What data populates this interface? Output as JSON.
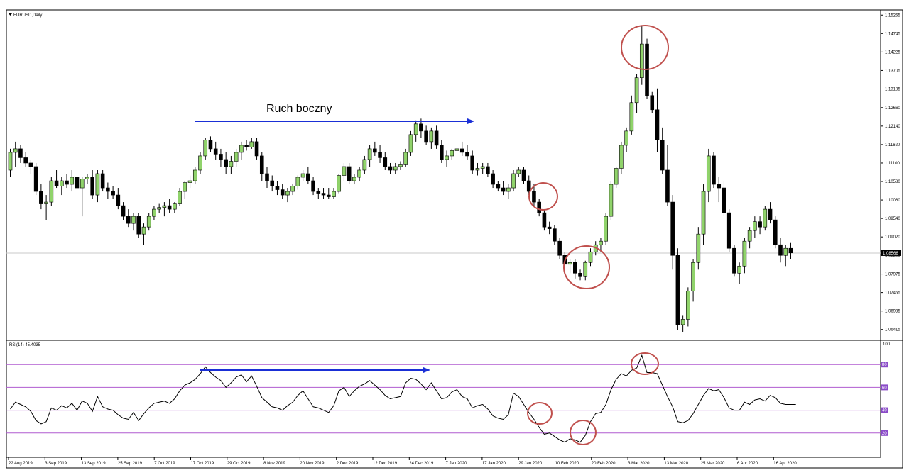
{
  "chart_data": {
    "type": "candlestick",
    "symbol_label": "EURUSD,Daily",
    "price_axis": {
      "ticks": [
        "1.15265",
        "1.14745",
        "1.14225",
        "1.13705",
        "1.13185",
        "1.12660",
        "1.12140",
        "1.11620",
        "1.11100",
        "1.10580",
        "1.10060",
        "1.09540",
        "1.09020",
        "1.08500",
        "1.07975",
        "1.07455",
        "1.06935",
        "1.06415"
      ],
      "range": [
        1.0615,
        1.1537
      ],
      "current_price": 1.08566,
      "current_price_label": "1.08566"
    },
    "date_axis": {
      "labels": [
        "22 Aug 2019",
        "3 Sep 2019",
        "13 Sep 2019",
        "25 Sep 2019",
        "7 Oct 2019",
        "17 Oct 2019",
        "29 Oct 2019",
        "8 Nov 2019",
        "20 Nov 2019",
        "2 Dec 2019",
        "12 Dec 2019",
        "24 Dec 2019",
        "7 Jan 2020",
        "17 Jan 2020",
        "29 Jan 2020",
        "10 Feb 2020",
        "20 Feb 2020",
        "3 Mar 2020",
        "13 Mar 2020",
        "25 Mar 2020",
        "6 Apr 2020",
        "16 Apr 2020"
      ]
    },
    "candles": [
      [
        1.109,
        1.115,
        1.107,
        1.114
      ],
      [
        1.114,
        1.117,
        1.11,
        1.115
      ],
      [
        1.115,
        1.116,
        1.111,
        1.1125
      ],
      [
        1.1125,
        1.114,
        1.11,
        1.111
      ],
      [
        1.111,
        1.112,
        1.108,
        1.11
      ],
      [
        1.11,
        1.111,
        1.102,
        1.103
      ],
      [
        1.103,
        1.105,
        1.098,
        1.0995
      ],
      [
        1.0995,
        1.102,
        1.095,
        1.1
      ],
      [
        1.1,
        1.107,
        1.099,
        1.106
      ],
      [
        1.106,
        1.109,
        1.104,
        1.1045
      ],
      [
        1.1045,
        1.107,
        1.102,
        1.106
      ],
      [
        1.106,
        1.108,
        1.104,
        1.105
      ],
      [
        1.105,
        1.109,
        1.103,
        1.107
      ],
      [
        1.107,
        1.108,
        1.103,
        1.104
      ],
      [
        1.104,
        1.107,
        1.096,
        1.1065
      ],
      [
        1.1065,
        1.108,
        1.105,
        1.107
      ],
      [
        1.107,
        1.109,
        1.101,
        1.102
      ],
      [
        1.102,
        1.109,
        1.1,
        1.108
      ],
      [
        1.108,
        1.109,
        1.103,
        1.104
      ],
      [
        1.104,
        1.1055,
        1.101,
        1.103
      ],
      [
        1.103,
        1.1045,
        1.101,
        1.102
      ],
      [
        1.102,
        1.104,
        1.098,
        1.099
      ],
      [
        1.099,
        1.1,
        1.095,
        1.096
      ],
      [
        1.096,
        1.098,
        1.093,
        1.094
      ],
      [
        1.094,
        1.097,
        1.092,
        1.096
      ],
      [
        1.096,
        1.097,
        1.09,
        1.091
      ],
      [
        1.091,
        1.094,
        1.088,
        1.093
      ],
      [
        1.093,
        1.097,
        1.092,
        1.096
      ],
      [
        1.096,
        1.099,
        1.095,
        1.098
      ],
      [
        1.098,
        1.0995,
        1.097,
        1.0985
      ],
      [
        1.0985,
        1.1,
        1.096,
        1.099
      ],
      [
        1.099,
        1.101,
        1.097,
        1.098
      ],
      [
        1.098,
        1.1,
        1.097,
        1.0995
      ],
      [
        1.0995,
        1.104,
        1.099,
        1.103
      ],
      [
        1.103,
        1.106,
        1.101,
        1.1055
      ],
      [
        1.1055,
        1.1075,
        1.104,
        1.106
      ],
      [
        1.106,
        1.11,
        1.105,
        1.109
      ],
      [
        1.109,
        1.114,
        1.108,
        1.113
      ],
      [
        1.113,
        1.118,
        1.112,
        1.1175
      ],
      [
        1.1175,
        1.1185,
        1.114,
        1.115
      ],
      [
        1.115,
        1.117,
        1.112,
        1.1135
      ],
      [
        1.1135,
        1.115,
        1.11,
        1.112
      ],
      [
        1.112,
        1.114,
        1.108,
        1.11
      ],
      [
        1.11,
        1.113,
        1.108,
        1.1115
      ],
      [
        1.1115,
        1.115,
        1.11,
        1.114
      ],
      [
        1.114,
        1.117,
        1.112,
        1.116
      ],
      [
        1.116,
        1.1175,
        1.1145,
        1.1155
      ],
      [
        1.1155,
        1.118,
        1.115,
        1.117
      ],
      [
        1.117,
        1.118,
        1.112,
        1.113
      ],
      [
        1.113,
        1.114,
        1.106,
        1.108
      ],
      [
        1.108,
        1.11,
        1.104,
        1.106
      ],
      [
        1.106,
        1.1075,
        1.103,
        1.1045
      ],
      [
        1.1045,
        1.106,
        1.102,
        1.1035
      ],
      [
        1.1035,
        1.105,
        1.101,
        1.102
      ],
      [
        1.102,
        1.104,
        1.1,
        1.103
      ],
      [
        1.103,
        1.105,
        1.102,
        1.1045
      ],
      [
        1.1045,
        1.1075,
        1.1035,
        1.107
      ],
      [
        1.107,
        1.109,
        1.106,
        1.108
      ],
      [
        1.108,
        1.11,
        1.105,
        1.106
      ],
      [
        1.106,
        1.107,
        1.102,
        1.103
      ],
      [
        1.103,
        1.104,
        1.101,
        1.1025
      ],
      [
        1.1025,
        1.104,
        1.101,
        1.102
      ],
      [
        1.102,
        1.104,
        1.101,
        1.1015
      ],
      [
        1.1015,
        1.104,
        1.101,
        1.103
      ],
      [
        1.103,
        1.108,
        1.1025,
        1.1075
      ],
      [
        1.1075,
        1.111,
        1.106,
        1.11
      ],
      [
        1.11,
        1.111,
        1.105,
        1.106
      ],
      [
        1.106,
        1.108,
        1.105,
        1.107
      ],
      [
        1.107,
        1.11,
        1.106,
        1.109
      ],
      [
        1.109,
        1.113,
        1.108,
        1.112
      ],
      [
        1.112,
        1.116,
        1.11,
        1.115
      ],
      [
        1.115,
        1.117,
        1.113,
        1.114
      ],
      [
        1.114,
        1.116,
        1.111,
        1.1125
      ],
      [
        1.1125,
        1.114,
        1.109,
        1.11
      ],
      [
        1.11,
        1.111,
        1.108,
        1.109
      ],
      [
        1.109,
        1.111,
        1.108,
        1.11
      ],
      [
        1.11,
        1.1115,
        1.109,
        1.1105
      ],
      [
        1.1105,
        1.115,
        1.11,
        1.114
      ],
      [
        1.114,
        1.12,
        1.113,
        1.119
      ],
      [
        1.119,
        1.123,
        1.117,
        1.122
      ],
      [
        1.122,
        1.1235,
        1.118,
        1.12
      ],
      [
        1.12,
        1.1215,
        1.116,
        1.117
      ],
      [
        1.117,
        1.121,
        1.115,
        1.12
      ],
      [
        1.12,
        1.1215,
        1.115,
        1.116
      ],
      [
        1.116,
        1.1175,
        1.111,
        1.112
      ],
      [
        1.112,
        1.1145,
        1.11,
        1.113
      ],
      [
        1.113,
        1.115,
        1.112,
        1.1145
      ],
      [
        1.1145,
        1.1165,
        1.113,
        1.115
      ],
      [
        1.115,
        1.117,
        1.113,
        1.114
      ],
      [
        1.114,
        1.116,
        1.112,
        1.113
      ],
      [
        1.113,
        1.1145,
        1.108,
        1.109
      ],
      [
        1.109,
        1.111,
        1.1075,
        1.1095
      ],
      [
        1.1095,
        1.111,
        1.108,
        1.11
      ],
      [
        1.11,
        1.111,
        1.107,
        1.108
      ],
      [
        1.108,
        1.109,
        1.104,
        1.105
      ],
      [
        1.105,
        1.106,
        1.103,
        1.104
      ],
      [
        1.104,
        1.106,
        1.102,
        1.103
      ],
      [
        1.103,
        1.105,
        1.101,
        1.104
      ],
      [
        1.104,
        1.109,
        1.103,
        1.108
      ],
      [
        1.108,
        1.11,
        1.107,
        1.109
      ],
      [
        1.109,
        1.11,
        1.105,
        1.106
      ],
      [
        1.106,
        1.1075,
        1.102,
        1.103
      ],
      [
        1.103,
        1.105,
        1.099,
        1.1
      ],
      [
        1.1,
        1.101,
        1.096,
        1.097
      ],
      [
        1.097,
        1.098,
        1.092,
        1.093
      ],
      [
        1.093,
        1.0945,
        1.091,
        1.0925
      ],
      [
        1.0925,
        1.0935,
        1.088,
        1.089
      ],
      [
        1.089,
        1.09,
        1.084,
        1.085
      ],
      [
        1.085,
        1.086,
        1.081,
        1.0825
      ],
      [
        1.0825,
        1.084,
        1.08,
        1.083
      ],
      [
        1.083,
        1.084,
        1.0785,
        1.08
      ],
      [
        1.08,
        1.081,
        1.078,
        1.079
      ],
      [
        1.079,
        1.0835,
        1.078,
        1.083
      ],
      [
        1.083,
        1.087,
        1.082,
        1.086
      ],
      [
        1.086,
        1.089,
        1.085,
        1.088
      ],
      [
        1.088,
        1.09,
        1.086,
        1.089
      ],
      [
        1.089,
        1.097,
        1.088,
        1.096
      ],
      [
        1.096,
        1.106,
        1.095,
        1.105
      ],
      [
        1.105,
        1.11,
        1.104,
        1.1095
      ],
      [
        1.1095,
        1.117,
        1.108,
        1.116
      ],
      [
        1.116,
        1.121,
        1.114,
        1.12
      ],
      [
        1.12,
        1.13,
        1.119,
        1.128
      ],
      [
        1.128,
        1.136,
        1.125,
        1.135
      ],
      [
        1.135,
        1.1495,
        1.133,
        1.1445
      ],
      [
        1.1445,
        1.146,
        1.129,
        1.13
      ],
      [
        1.13,
        1.131,
        1.125,
        1.126
      ],
      [
        1.126,
        1.132,
        1.114,
        1.1175
      ],
      [
        1.1175,
        1.121,
        1.108,
        1.109
      ],
      [
        1.109,
        1.116,
        1.099,
        1.1
      ],
      [
        1.1,
        1.102,
        1.081,
        1.085
      ],
      [
        1.085,
        1.087,
        1.064,
        1.0655
      ],
      [
        1.0655,
        1.068,
        1.0635,
        1.067
      ],
      [
        1.067,
        1.076,
        1.065,
        1.075
      ],
      [
        1.075,
        1.084,
        1.072,
        1.083
      ],
      [
        1.083,
        1.093,
        1.081,
        1.091
      ],
      [
        1.091,
        1.105,
        1.088,
        1.103
      ],
      [
        1.103,
        1.115,
        1.1,
        1.113
      ],
      [
        1.113,
        1.114,
        1.104,
        1.105
      ],
      [
        1.105,
        1.107,
        1.1,
        1.104
      ],
      [
        1.104,
        1.106,
        1.096,
        1.097
      ],
      [
        1.097,
        1.098,
        1.086,
        1.087
      ],
      [
        1.087,
        1.088,
        1.079,
        1.08
      ],
      [
        1.08,
        1.083,
        1.077,
        1.082
      ],
      [
        1.082,
        1.09,
        1.08,
        1.089
      ],
      [
        1.089,
        1.093,
        1.087,
        1.092
      ],
      [
        1.092,
        1.096,
        1.09,
        1.0945
      ],
      [
        1.0945,
        1.096,
        1.091,
        1.093
      ],
      [
        1.093,
        1.099,
        1.092,
        1.098
      ],
      [
        1.098,
        1.1,
        1.094,
        1.095
      ],
      [
        1.095,
        1.096,
        1.087,
        1.088
      ],
      [
        1.088,
        1.09,
        1.083,
        1.085
      ],
      [
        1.085,
        1.088,
        1.082,
        1.087
      ],
      [
        1.087,
        1.0885,
        1.084,
        1.0857
      ]
    ],
    "rsi": {
      "label": "RSI(14) 45.4035",
      "axis_max_label": "100",
      "levels": [
        80,
        60,
        40,
        20
      ],
      "level_labels": [
        "80",
        "60",
        "40",
        "20"
      ],
      "ylim": [
        0,
        100
      ],
      "values": [
        41,
        47,
        45,
        43,
        39,
        31,
        28,
        30,
        42,
        40,
        44,
        42,
        46,
        40,
        48,
        46,
        39,
        52,
        43,
        41,
        40,
        36,
        33,
        32,
        38,
        31,
        37,
        42,
        46,
        47,
        48,
        46,
        50,
        57,
        62,
        64,
        67,
        72,
        78,
        73,
        69,
        66,
        60,
        64,
        69,
        71,
        65,
        70,
        61,
        51,
        47,
        43,
        42,
        40,
        44,
        47,
        53,
        57,
        50,
        43,
        42,
        40,
        38,
        44,
        57,
        60,
        52,
        57,
        61,
        63,
        66,
        62,
        58,
        53,
        50,
        51,
        52,
        64,
        68,
        67,
        63,
        58,
        64,
        57,
        50,
        51,
        56,
        58,
        52,
        50,
        42,
        44,
        45,
        41,
        35,
        33,
        32,
        36,
        55,
        52,
        45,
        38,
        32,
        25,
        19,
        20,
        17,
        14,
        12,
        15,
        14,
        12,
        18,
        30,
        37,
        38,
        45,
        58,
        67,
        72,
        70,
        75,
        77,
        88,
        73,
        73,
        72,
        62,
        52,
        43,
        30,
        29,
        31,
        37,
        45,
        53,
        59,
        57,
        58,
        51,
        42,
        40,
        40,
        47,
        45,
        49,
        50,
        48,
        53,
        51,
        46,
        45,
        45,
        45
      ]
    },
    "annotations": {
      "sideways_label": "Ruch boczny",
      "arrow_color": "#1a2fd6",
      "circle_color": "#c0504d"
    },
    "colors": {
      "bull": "#90d36b",
      "bear": "#000000",
      "grid_level": "#b05bd0",
      "current_price_line": "#c8c8c8"
    }
  }
}
